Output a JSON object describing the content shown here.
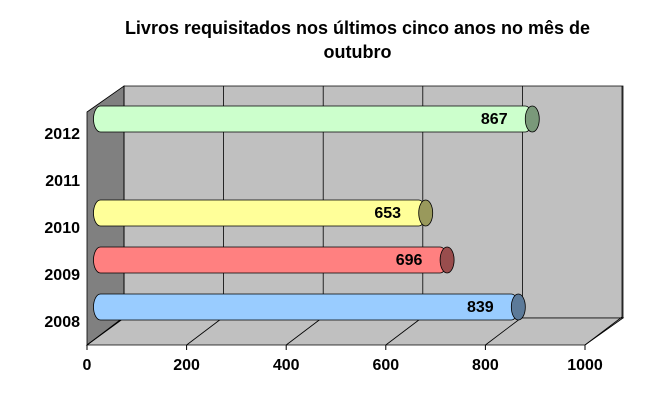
{
  "chart_data": {
    "type": "bar",
    "orientation": "horizontal",
    "style": "3d-cylinder",
    "title": "Livros requisitados nos últimos cinco anos no mês de outubro",
    "categories": [
      "2008",
      "2009",
      "2010",
      "2011",
      "2012"
    ],
    "values": [
      839,
      696,
      653,
      null,
      867
    ],
    "colors": [
      "#99ccff",
      "#ff8080",
      "#ffff99",
      null,
      "#ccffcc"
    ],
    "xlim": [
      0,
      1000
    ],
    "xticks": [
      0,
      200,
      400,
      600,
      800,
      1000
    ],
    "grid": true
  }
}
